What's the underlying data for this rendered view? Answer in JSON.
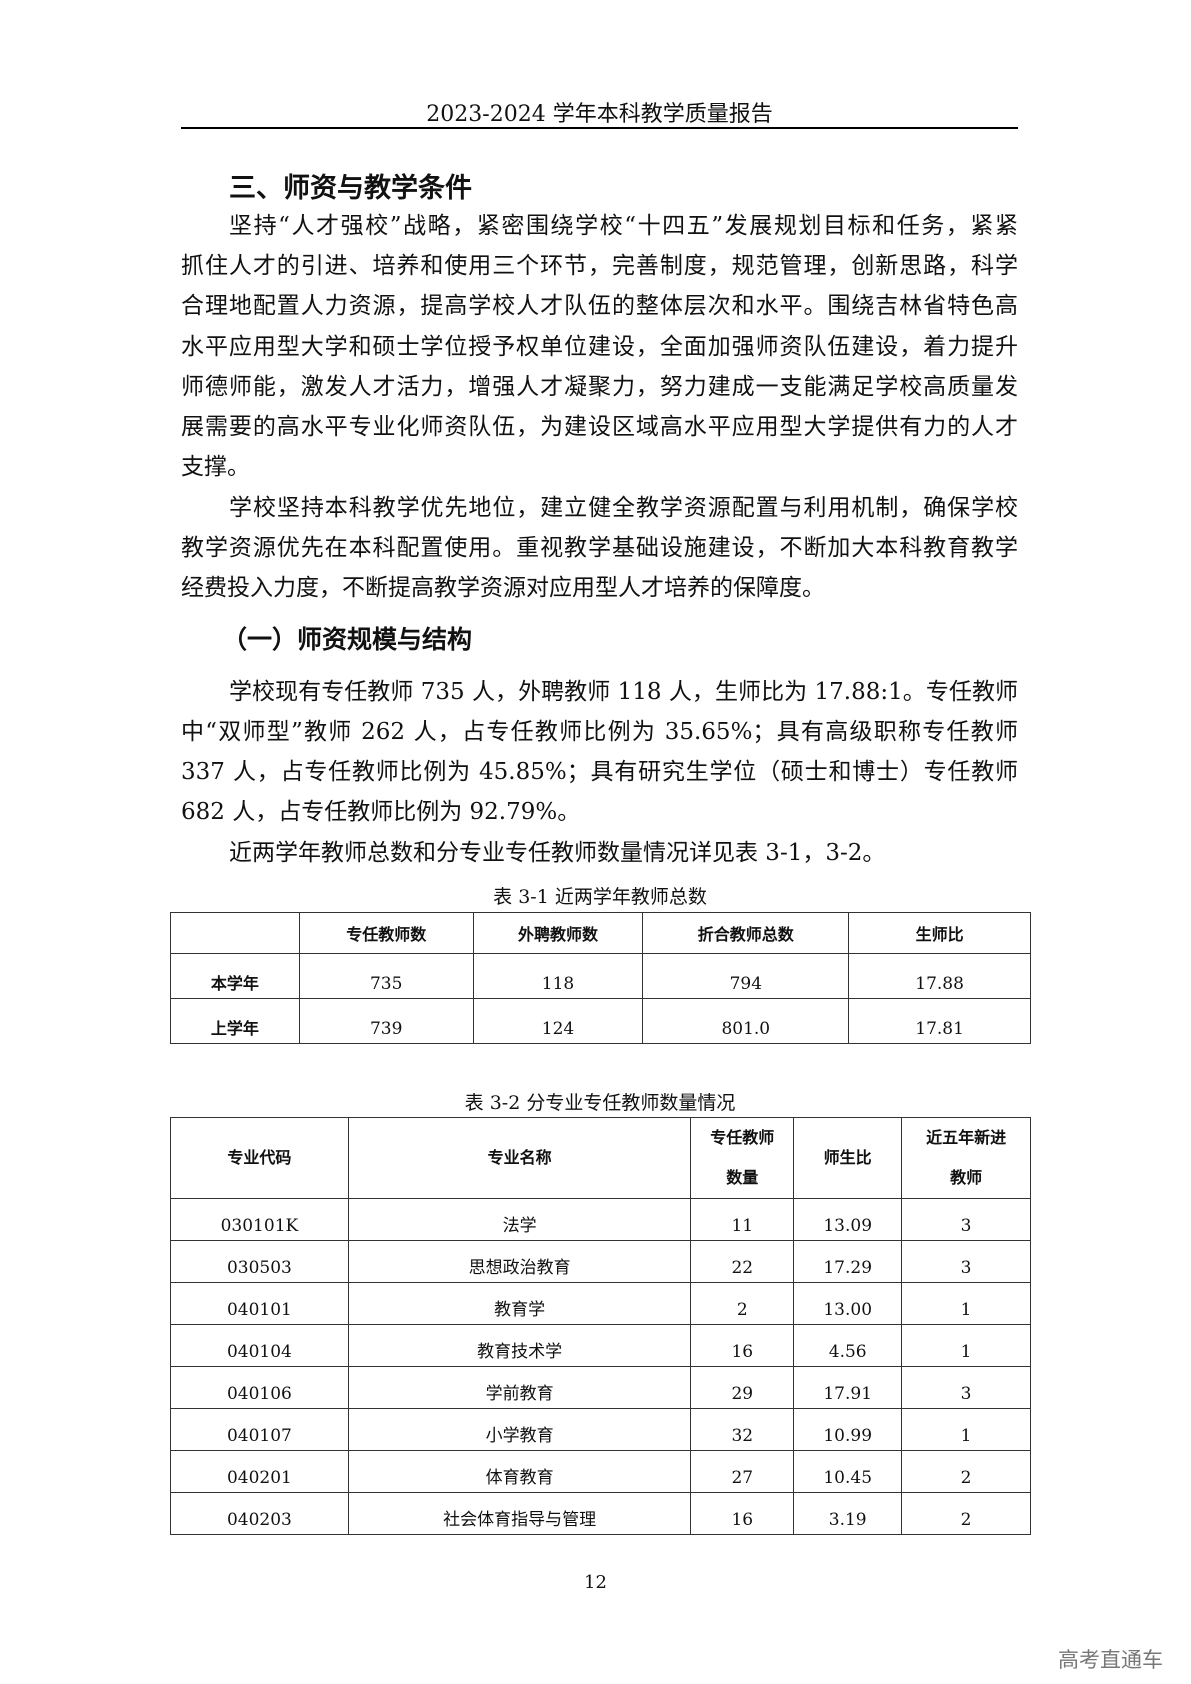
{
  "header": {
    "title": "2023-2024 学年本科教学质量报告"
  },
  "section": {
    "title": "三、师资与教学条件"
  },
  "para1": [
    "坚持“人才强校”战略，紧密围绕学校“十四五”发展规划目标和任务，紧紧",
    "抓住人才的引进、培养和使用三个环节，完善制度，规范管理，创新思路，科学",
    "合理地配置人力资源，提高学校人才队伍的整体层次和水平。围绕吉林省特色高",
    "水平应用型大学和硕士学位授予权单位建设，全面加强师资队伍建设，着力提升",
    "师德师能，激发人才活力，增强人才凝聚力，努力建成一支能满足学校高质量发",
    "展需要的高水平专业化师资队伍，为建设区域高水平应用型大学提供有力的人才",
    "支撑。"
  ],
  "para2": [
    "学校坚持本科教学优先地位，建立健全教学资源配置与利用机制，确保学校",
    "教学资源优先在本科配置使用。重视教学基础设施建设，不断加大本科教育教学",
    "经费投入力度，不断提高教学资源对应用型人才培养的保障度。"
  ],
  "subsection": {
    "title": "（一）师资规模与结构"
  },
  "para3": [
    "学校现有专任教师 735 人，外聘教师 118 人，生师比为 17.88:1。专任教师",
    "中“双师型”教师 262 人，占专任教师比例为 35.65%；具有高级职称专任教师",
    "337 人，占专任教师比例为 45.85%；具有研究生学位（硕士和博士）专任教师",
    "682 人，占专任教师比例为 92.79%。"
  ],
  "para4": [
    "近两学年教师总数和分专业专任教师数量情况详见表 3-1，3-2。"
  ],
  "table1": {
    "caption": "表  3-1  近两学年教师总数",
    "headers": [
      "",
      "专任教师数",
      "外聘教师数",
      "折合教师总数",
      "生师比"
    ],
    "rows": [
      [
        "本学年",
        "735",
        "118",
        "794",
        "17.88"
      ],
      [
        "上学年",
        "739",
        "124",
        "801.0",
        "17.81"
      ]
    ]
  },
  "table2": {
    "caption": "表  3-2  分专业专任教师数量情况",
    "headers": [
      "专业代码",
      "专业名称",
      "专任教师数量",
      "师生比",
      "近五年新进教师"
    ],
    "header_lines": {
      "c2a": "专任教师",
      "c2b": "数量",
      "c4a": "近五年新进",
      "c4b": "教师"
    },
    "rows": [
      [
        "030101K",
        "法学",
        "11",
        "13.09",
        "3"
      ],
      [
        "030503",
        "思想政治教育",
        "22",
        "17.29",
        "3"
      ],
      [
        "040101",
        "教育学",
        "2",
        "13.00",
        "1"
      ],
      [
        "040104",
        "教育技术学",
        "16",
        "4.56",
        "1"
      ],
      [
        "040106",
        "学前教育",
        "29",
        "17.91",
        "3"
      ],
      [
        "040107",
        "小学教育",
        "32",
        "10.99",
        "1"
      ],
      [
        "040201",
        "体育教育",
        "27",
        "10.45",
        "2"
      ],
      [
        "040203",
        "社会体育指导与管理",
        "16",
        "3.19",
        "2"
      ]
    ]
  },
  "footer": {
    "page_number": "12"
  },
  "watermark": {
    "text": "高考直通车"
  }
}
